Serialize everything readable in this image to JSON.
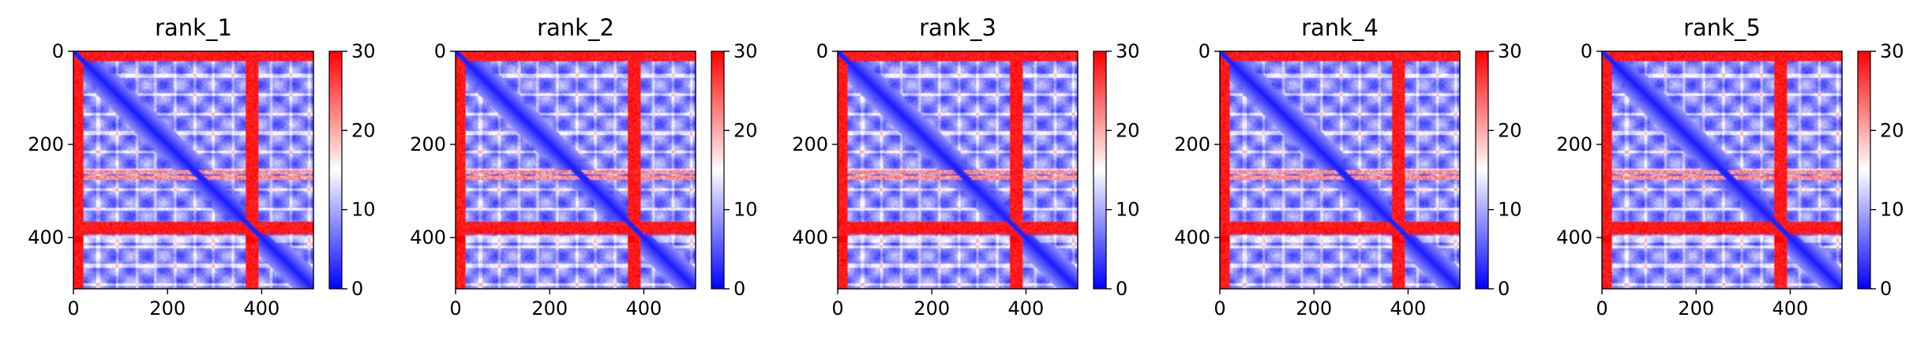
{
  "figure": {
    "background": "#ffffff"
  },
  "chart_data": [
    {
      "type": "heatmap",
      "title": "rank_1",
      "x_ticks": [
        0,
        200,
        400
      ],
      "y_ticks": [
        0,
        200,
        400
      ],
      "xlim": [
        0,
        510
      ],
      "ylim": [
        510,
        0
      ],
      "colorbar": {
        "vmin": 0,
        "vmax": 30,
        "ticks": [
          0,
          10,
          20,
          30
        ]
      },
      "colormap": [
        "#0000ff",
        "#ffffff",
        "#ff0000"
      ],
      "description_features": {
        "diagonal": "low values along main diagonal",
        "high_bands": [
          [
            0,
            18
          ],
          [
            366,
            392
          ]
        ],
        "high_lines": [
          258,
          270
        ],
        "block_boundaries": [
          258,
          390
        ]
      }
    },
    {
      "type": "heatmap",
      "title": "rank_2",
      "x_ticks": [
        0,
        200,
        400
      ],
      "y_ticks": [
        0,
        200,
        400
      ],
      "xlim": [
        0,
        510
      ],
      "ylim": [
        510,
        0
      ],
      "colorbar": {
        "vmin": 0,
        "vmax": 30,
        "ticks": [
          0,
          10,
          20,
          30
        ]
      },
      "colormap": [
        "#0000ff",
        "#ffffff",
        "#ff0000"
      ],
      "description_features": {
        "diagonal": "low values along main diagonal",
        "high_bands": [
          [
            0,
            18
          ],
          [
            366,
            392
          ]
        ],
        "high_lines": [
          258,
          270
        ],
        "block_boundaries": [
          258,
          390
        ]
      }
    },
    {
      "type": "heatmap",
      "title": "rank_3",
      "x_ticks": [
        0,
        200,
        400
      ],
      "y_ticks": [
        0,
        200,
        400
      ],
      "xlim": [
        0,
        510
      ],
      "ylim": [
        510,
        0
      ],
      "colorbar": {
        "vmin": 0,
        "vmax": 30,
        "ticks": [
          0,
          10,
          20,
          30
        ]
      },
      "colormap": [
        "#0000ff",
        "#ffffff",
        "#ff0000"
      ],
      "description_features": {
        "diagonal": "low values along main diagonal",
        "high_bands": [
          [
            0,
            18
          ],
          [
            366,
            392
          ]
        ],
        "high_lines": [
          258,
          270
        ],
        "block_boundaries": [
          258,
          390
        ]
      }
    },
    {
      "type": "heatmap",
      "title": "rank_4",
      "x_ticks": [
        0,
        200,
        400
      ],
      "y_ticks": [
        0,
        200,
        400
      ],
      "xlim": [
        0,
        510
      ],
      "ylim": [
        510,
        0
      ],
      "colorbar": {
        "vmin": 0,
        "vmax": 30,
        "ticks": [
          0,
          10,
          20,
          30
        ]
      },
      "colormap": [
        "#0000ff",
        "#ffffff",
        "#ff0000"
      ],
      "description_features": {
        "diagonal": "low values along main diagonal",
        "high_bands": [
          [
            0,
            18
          ],
          [
            366,
            392
          ]
        ],
        "high_lines": [
          258,
          270
        ],
        "block_boundaries": [
          258,
          390
        ]
      }
    },
    {
      "type": "heatmap",
      "title": "rank_5",
      "x_ticks": [
        0,
        200,
        400
      ],
      "y_ticks": [
        0,
        200,
        400
      ],
      "xlim": [
        0,
        510
      ],
      "ylim": [
        510,
        0
      ],
      "colorbar": {
        "vmin": 0,
        "vmax": 30,
        "ticks": [
          0,
          10,
          20,
          30
        ]
      },
      "colormap": [
        "#0000ff",
        "#ffffff",
        "#ff0000"
      ],
      "description_features": {
        "diagonal": "low values along main diagonal",
        "high_bands": [
          [
            0,
            18
          ],
          [
            366,
            392
          ]
        ],
        "high_lines": [
          258,
          270
        ],
        "block_boundaries": [
          258,
          390
        ]
      }
    }
  ]
}
